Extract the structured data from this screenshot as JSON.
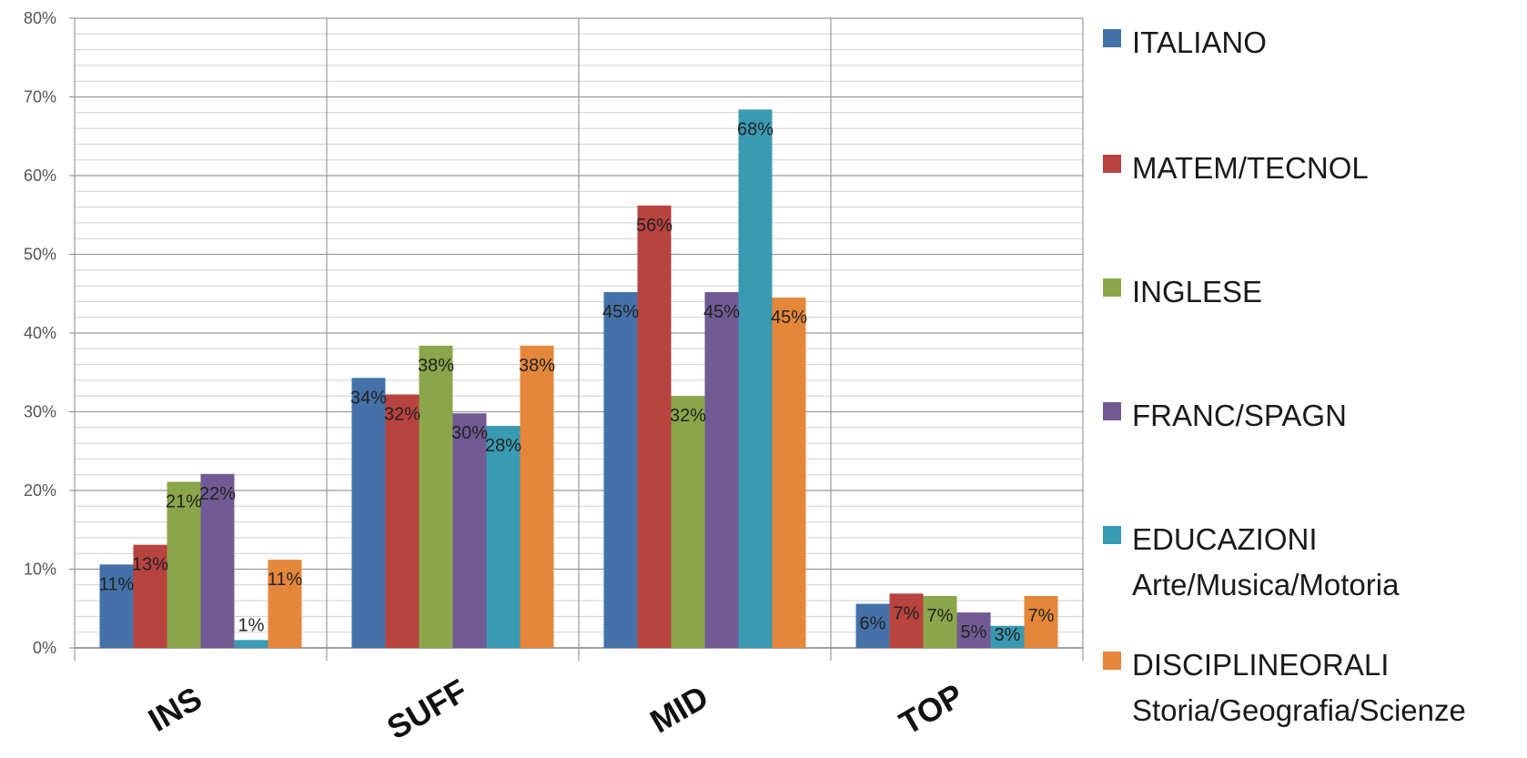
{
  "chart_data": {
    "type": "bar",
    "title": "",
    "xlabel": "",
    "ylabel": "",
    "ylim": [
      0,
      80
    ],
    "yticks": [
      "0%",
      "10%",
      "20%",
      "30%",
      "40%",
      "50%",
      "60%",
      "70%",
      "80%"
    ],
    "grid": true,
    "legend_position": "right",
    "categories": [
      "INS",
      "SUFF",
      "MID",
      "TOP"
    ],
    "series": [
      {
        "name": "ITALIANO",
        "name_line2": "",
        "color": "#4472A8",
        "values": [
          10.6,
          34.3,
          45.2,
          5.6
        ],
        "labels": [
          "11%",
          "34%",
          "45%",
          "6%"
        ]
      },
      {
        "name": "MATEM/TECNOL",
        "name_line2": "",
        "color": "#B8433F",
        "values": [
          13.1,
          32.2,
          56.2,
          6.9
        ],
        "labels": [
          "13%",
          "32%",
          "56%",
          "7%"
        ]
      },
      {
        "name": "INGLESE",
        "name_line2": "",
        "color": "#8BA64A",
        "values": [
          21.1,
          38.4,
          32.0,
          6.6
        ],
        "labels": [
          "21%",
          "38%",
          "32%",
          "7%"
        ]
      },
      {
        "name": "FRANC/SPAGN",
        "name_line2": "",
        "color": "#725A94",
        "values": [
          22.1,
          29.8,
          45.2,
          4.5
        ],
        "labels": [
          "22%",
          "30%",
          "45%",
          "5%"
        ]
      },
      {
        "name": "EDUCAZIONI",
        "name_line2": "Arte/Musica/Motoria",
        "color": "#3A9AB3",
        "values": [
          1.0,
          28.2,
          68.4,
          2.8
        ],
        "labels": [
          "1%",
          "28%",
          "68%",
          "3%"
        ]
      },
      {
        "name": "DISCIPLINEORALI",
        "name_line2": "Storia/Geografia/Scienze",
        "color": "#E5873A",
        "values": [
          11.2,
          38.4,
          44.5,
          6.6
        ],
        "labels": [
          "11%",
          "38%",
          "45%",
          "7%"
        ]
      }
    ]
  }
}
